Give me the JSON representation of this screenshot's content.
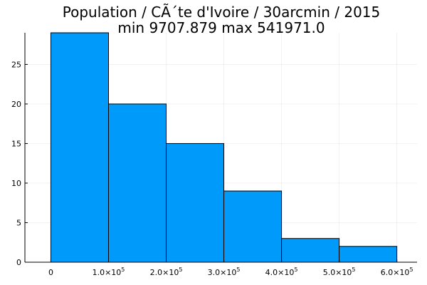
{
  "chart_data": {
    "type": "bar",
    "title": "Population / CÃ´te d'Ivoire / 30arcmin / 2015",
    "subtitle": "min 9707.879  max 541971.0",
    "xlabel": "",
    "ylabel": "",
    "bin_edges": [
      0,
      100000,
      200000,
      300000,
      400000,
      500000,
      600000
    ],
    "values": [
      29,
      20,
      15,
      9,
      3,
      2
    ],
    "xlim": [
      -45000,
      635000
    ],
    "ylim": [
      0,
      29
    ],
    "x_ticks": [
      {
        "value": 0,
        "label": "0",
        "exp": ""
      },
      {
        "value": 100000,
        "label": "1.0×10",
        "exp": "5"
      },
      {
        "value": 200000,
        "label": "2.0×10",
        "exp": "5"
      },
      {
        "value": 300000,
        "label": "3.0×10",
        "exp": "5"
      },
      {
        "value": 400000,
        "label": "4.0×10",
        "exp": "5"
      },
      {
        "value": 500000,
        "label": "5.0×10",
        "exp": "5"
      },
      {
        "value": 600000,
        "label": "6.0×10",
        "exp": "5"
      }
    ],
    "y_ticks": [
      {
        "value": 0,
        "label": "0"
      },
      {
        "value": 5,
        "label": "5"
      },
      {
        "value": 10,
        "label": "10"
      },
      {
        "value": 15,
        "label": "15"
      },
      {
        "value": 20,
        "label": "20"
      },
      {
        "value": 25,
        "label": "25"
      }
    ],
    "grid": true,
    "legend": "none",
    "bar_color": "#009AFA",
    "edge_color": "#000000"
  }
}
